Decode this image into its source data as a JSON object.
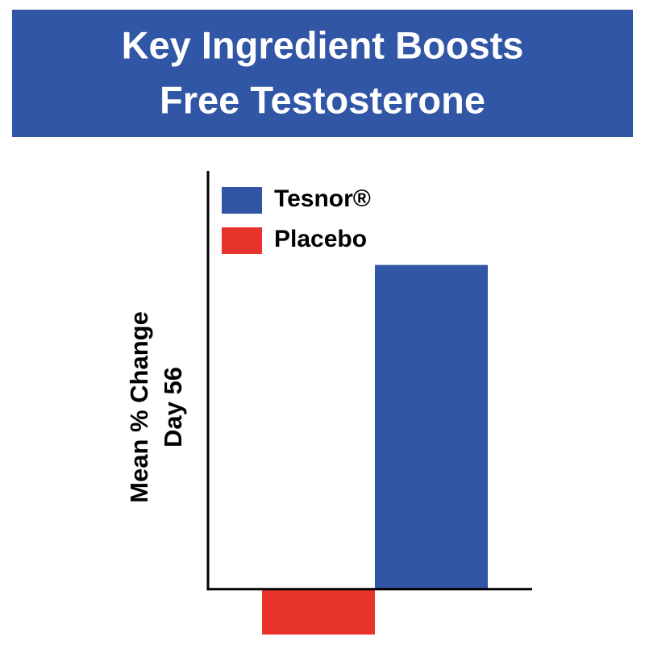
{
  "chart_data": {
    "type": "bar",
    "title": [
      "Key Ingredient Boosts",
      "Free Testosterone"
    ],
    "y_label": [
      "Mean % Change",
      "Day 56"
    ],
    "categories": [
      null
    ],
    "series": [
      {
        "name": "Tesnor®",
        "color": "#3056a5",
        "values": [
          100
        ]
      },
      {
        "name": "Placebo",
        "color": "#e8332c",
        "values": [
          -14
        ]
      }
    ],
    "ylim": [
      -14,
      129
    ]
  }
}
